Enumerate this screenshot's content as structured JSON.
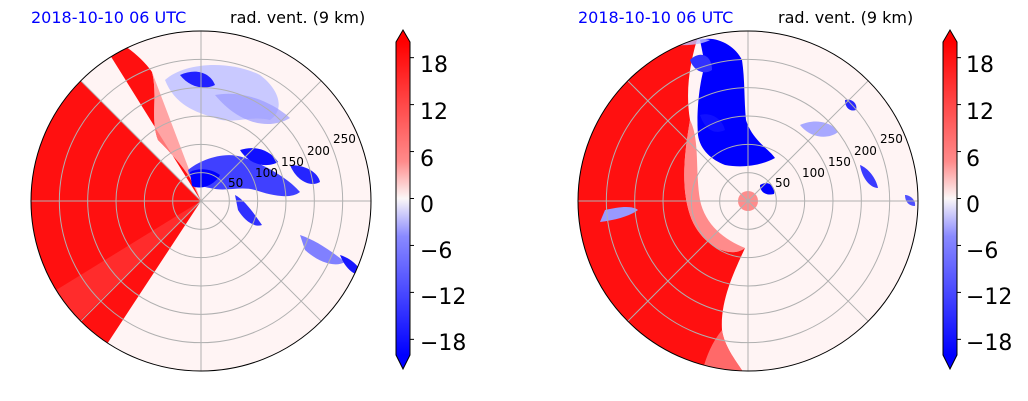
{
  "chart_data": [
    {
      "type": "polar",
      "title_left": "2018-10-10 06 UTC",
      "title_right": "rad. vent. (9 km)",
      "radial_ticks": [
        "50",
        "100",
        "150",
        "200",
        "250"
      ],
      "radial_max": 300,
      "colorbar": {
        "ticks": [
          "18",
          "12",
          "6",
          "0",
          "−6",
          "−12",
          "−18"
        ],
        "tick_values": [
          18,
          12,
          6,
          0,
          -6,
          -12,
          -18
        ],
        "range": [
          -20,
          20
        ],
        "extend": "both",
        "colormap": "bwr"
      },
      "colors": {
        "positive": "#ff0000",
        "negative": "#0000ff",
        "neutral": "#fff5f5"
      }
    },
    {
      "type": "polar",
      "title_left": "2018-10-10 06 UTC",
      "title_right": "rad. vent. (9 km)",
      "radial_ticks": [
        "50",
        "100",
        "150",
        "200",
        "250"
      ],
      "radial_max": 300,
      "colorbar": {
        "ticks": [
          "18",
          "12",
          "6",
          "0",
          "−6",
          "−12",
          "−18"
        ],
        "tick_values": [
          18,
          12,
          6,
          0,
          -6,
          -12,
          -18
        ],
        "range": [
          -20,
          20
        ],
        "extend": "both",
        "colormap": "bwr"
      },
      "colors": {
        "positive": "#ff0000",
        "negative": "#0000ff",
        "neutral": "#fff5f5"
      }
    }
  ]
}
